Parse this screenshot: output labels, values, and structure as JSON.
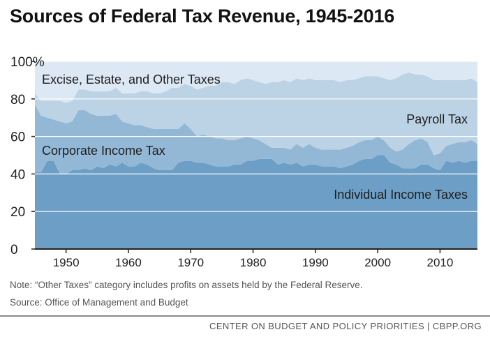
{
  "title": "Sources of Federal Tax Revenue, 1945-2016",
  "note": "Note: “Other Taxes” category includes profits on assets held by the Federal Reserve.",
  "source": "Source: Office of Management and Budget",
  "footer": "CENTER ON BUDGET AND POLICY PRIORITIES | CBPP.ORG",
  "colors": {
    "individual": "#6c9ec6",
    "corporate": "#93b8d6",
    "payroll": "#bcd3e6",
    "other": "#dce8f3",
    "grid": "#ffffff",
    "axis": "#222222"
  },
  "chart_data": {
    "type": "area",
    "stacked": true,
    "title": "Sources of Federal Tax Revenue, 1945-2016",
    "xlabel": "",
    "ylabel": "",
    "xlim": [
      1945,
      2016
    ],
    "ylim": [
      0,
      100
    ],
    "x_ticks": [
      1950,
      1960,
      1970,
      1980,
      1990,
      2000,
      2010
    ],
    "y_ticks": [
      {
        "value": 0,
        "label": "0"
      },
      {
        "value": 20,
        "label": "20"
      },
      {
        "value": 40,
        "label": "40"
      },
      {
        "value": 60,
        "label": "60"
      },
      {
        "value": 80,
        "label": "80"
      },
      {
        "value": 100,
        "label": "100%"
      }
    ],
    "x": [
      1945,
      1946,
      1947,
      1948,
      1949,
      1950,
      1951,
      1952,
      1953,
      1954,
      1955,
      1956,
      1957,
      1958,
      1959,
      1960,
      1961,
      1962,
      1963,
      1964,
      1965,
      1966,
      1967,
      1968,
      1969,
      1970,
      1971,
      1972,
      1973,
      1974,
      1975,
      1976,
      1977,
      1978,
      1979,
      1980,
      1981,
      1982,
      1983,
      1984,
      1985,
      1986,
      1987,
      1988,
      1989,
      1990,
      1991,
      1992,
      1993,
      1994,
      1995,
      1996,
      1997,
      1998,
      1999,
      2000,
      2001,
      2002,
      2003,
      2004,
      2005,
      2006,
      2007,
      2008,
      2009,
      2010,
      2011,
      2012,
      2013,
      2014,
      2015,
      2016
    ],
    "series": [
      {
        "name": "Individual Income Taxes",
        "values": [
          41,
          41,
          47,
          47,
          40,
          40,
          42,
          42,
          43,
          42,
          44,
          43,
          45,
          44,
          46,
          44,
          44,
          46,
          45,
          43,
          42,
          42,
          42,
          46,
          47,
          47,
          46,
          46,
          45,
          44,
          44,
          44,
          45,
          45,
          47,
          47,
          48,
          48,
          48,
          45,
          46,
          45,
          46,
          44,
          45,
          45,
          44,
          44,
          44,
          43,
          44,
          45,
          47,
          48,
          48,
          50,
          50,
          46,
          45,
          43,
          43,
          43,
          45,
          45,
          43,
          42,
          47,
          46,
          47,
          46,
          47,
          47
        ]
      },
      {
        "name": "Corporate Income Tax",
        "values": [
          36,
          30,
          23,
          22,
          28,
          27,
          26,
          32,
          31,
          30,
          27,
          28,
          26,
          28,
          22,
          23,
          22,
          20,
          20,
          21,
          22,
          22,
          22,
          18,
          20,
          17,
          14,
          15,
          15,
          15,
          15,
          14,
          13,
          14,
          13,
          12,
          10,
          8,
          6,
          9,
          8,
          8,
          10,
          10,
          11,
          9,
          9,
          9,
          9,
          10,
          10,
          10,
          10,
          10,
          10,
          10,
          8,
          8,
          7,
          10,
          13,
          15,
          14,
          12,
          7,
          9,
          8,
          10,
          10,
          11,
          11,
          9
        ]
      },
      {
        "name": "Payroll Tax",
        "values": [
          6,
          8,
          9,
          10,
          11,
          11,
          11,
          11,
          11,
          12,
          13,
          13,
          13,
          14,
          15,
          16,
          17,
          18,
          19,
          19,
          19,
          20,
          22,
          22,
          21,
          23,
          25,
          25,
          27,
          28,
          30,
          31,
          30,
          31,
          31,
          31,
          31,
          32,
          35,
          35,
          36,
          36,
          35,
          36,
          35,
          36,
          37,
          37,
          37,
          36,
          36,
          35,
          34,
          34,
          34,
          32,
          33,
          36,
          39,
          40,
          38,
          35,
          34,
          35,
          40,
          39,
          35,
          34,
          33,
          33,
          33,
          33
        ]
      },
      {
        "name": "Excise, Estate, and Other Taxes",
        "values": [
          17,
          21,
          21,
          21,
          21,
          22,
          21,
          15,
          15,
          16,
          16,
          16,
          16,
          14,
          17,
          17,
          17,
          16,
          16,
          17,
          17,
          16,
          14,
          14,
          12,
          13,
          15,
          14,
          13,
          13,
          11,
          11,
          12,
          10,
          9,
          10,
          11,
          12,
          11,
          11,
          10,
          11,
          9,
          10,
          9,
          10,
          10,
          10,
          10,
          11,
          10,
          10,
          9,
          8,
          8,
          8,
          9,
          10,
          9,
          7,
          6,
          7,
          7,
          8,
          10,
          10,
          10,
          10,
          10,
          10,
          9,
          11
        ]
      }
    ],
    "annotations": [
      "Excise, Estate, and Other Taxes",
      "Payroll Tax",
      "Corporate Income Tax",
      "Individual Income Taxes"
    ],
    "grid": true
  }
}
